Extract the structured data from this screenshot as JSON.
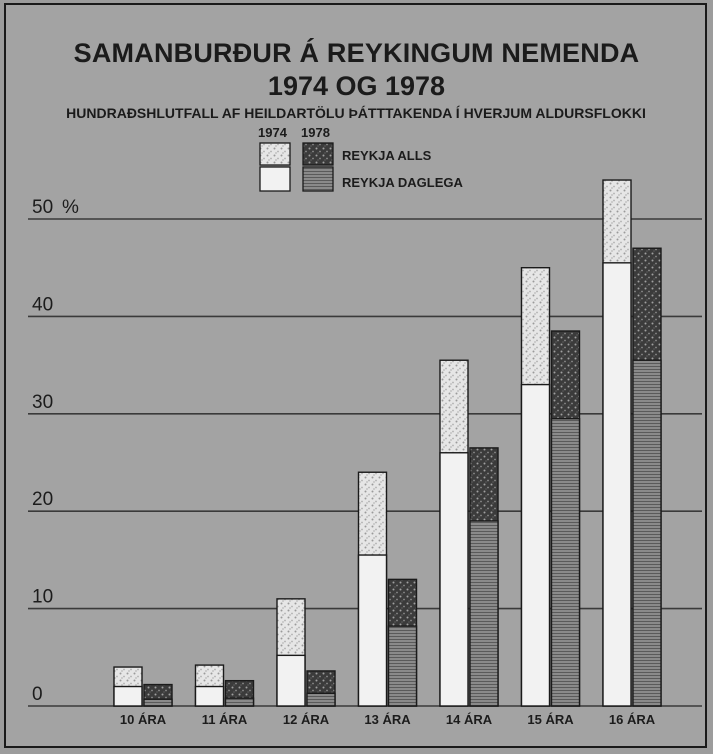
{
  "chart_data": {
    "type": "bar",
    "title": "SAMANBURÐUR Á REYKINGUM NEMENDA",
    "subtitle_years": "1974 OG 1978",
    "ylabel": "HUNDRAÐSHLUTFALL AF HEILDARTÖLU ÞÁTTTAKENDA Í HVERJUM ALDURSFLOKKI",
    "y_unit": "%",
    "ylim": [
      0,
      50
    ],
    "yticks": [
      0,
      10,
      20,
      30,
      40,
      50
    ],
    "categories": [
      "10 ÁRA",
      "11 ÁRA",
      "12 ÁRA",
      "13 ÁRA",
      "14 ÁRA",
      "15 ÁRA",
      "16 ÁRA"
    ],
    "legend": {
      "years": [
        "1974",
        "1978"
      ],
      "entries": [
        "REYKJA ALLS",
        "REYKJA DAGLEGA"
      ],
      "placement": "top-center"
    },
    "series": [
      {
        "name": "1974 REYKJA ALLS",
        "values": [
          4,
          4.2,
          11,
          24,
          35.5,
          45,
          54
        ]
      },
      {
        "name": "1974 REYKJA DAGLEGA",
        "values": [
          2,
          2,
          5.2,
          15.5,
          26,
          33,
          45.5
        ]
      },
      {
        "name": "1978 REYKJA ALLS",
        "values": [
          2.2,
          2.6,
          3.6,
          13,
          26.5,
          38.5,
          47
        ]
      },
      {
        "name": "1978 REYKJA DAGLEGA",
        "values": [
          0.7,
          0.8,
          1.3,
          8.2,
          19,
          29.5,
          35.5
        ]
      }
    ],
    "grid": true
  },
  "colors": {
    "background": "#a3a3a3",
    "gridline": "#3a3a3a",
    "bar_1974_daily": "#f2f2f2",
    "bar_1974_total": "#e3e3e3",
    "bar_1978_daily": "#7d7d7d",
    "bar_1978_total": "#3e3e3e",
    "outline": "#1a1a1a"
  }
}
